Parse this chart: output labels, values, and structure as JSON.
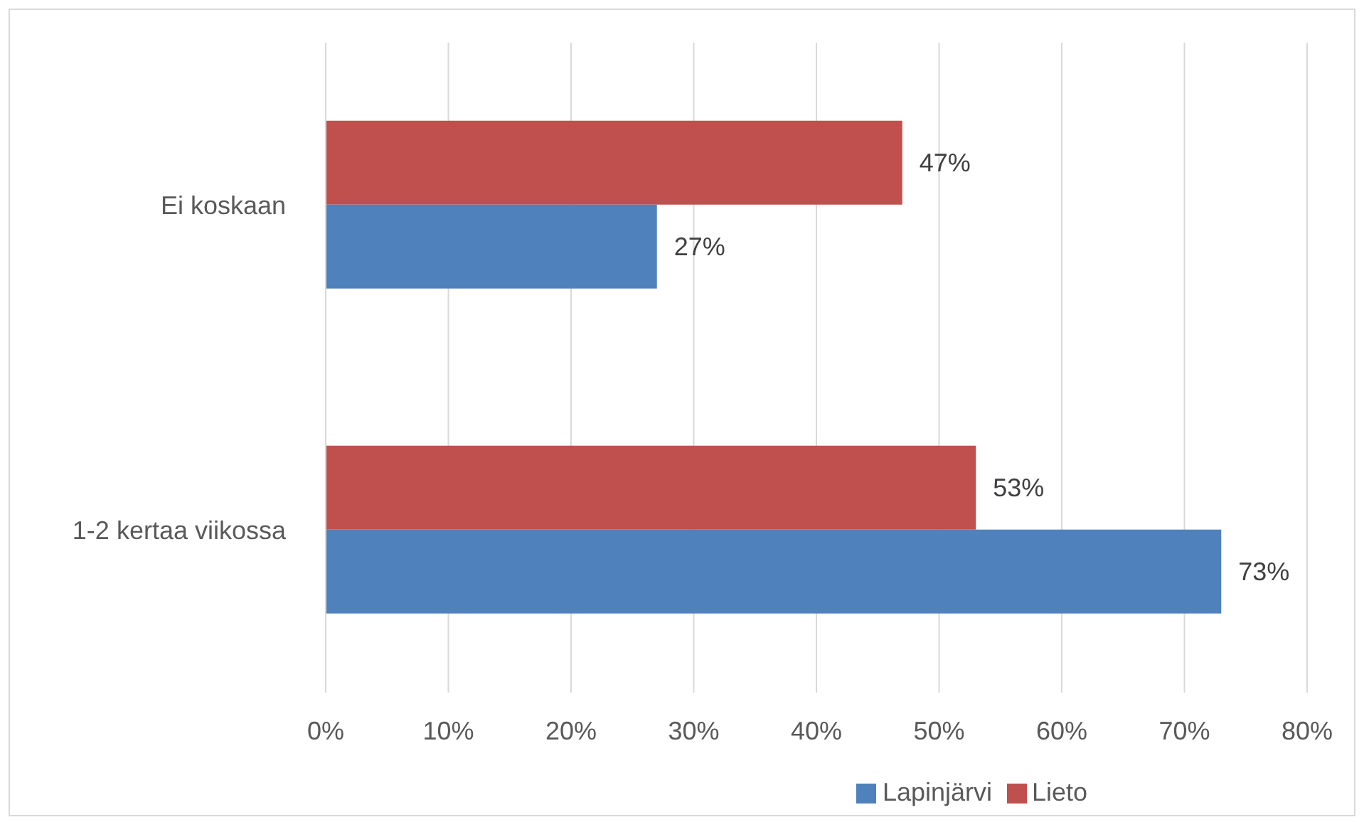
{
  "chart_data": {
    "type": "bar",
    "orientation": "horizontal",
    "categories": [
      "Ei koskaan",
      "1-2 kertaa viikossa"
    ],
    "series": [
      {
        "name": "Lieto",
        "color": "#c0504d",
        "values": [
          47,
          53
        ],
        "value_labels": [
          "47%",
          "53%"
        ]
      },
      {
        "name": "Lapinjärvi",
        "color": "#4f81bd",
        "values": [
          27,
          73
        ],
        "value_labels": [
          "27%",
          "73%"
        ]
      }
    ],
    "xlim": [
      0,
      80
    ],
    "xticks": [
      {
        "value": 0,
        "label": "0%"
      },
      {
        "value": 10,
        "label": "10%"
      },
      {
        "value": 20,
        "label": "20%"
      },
      {
        "value": 30,
        "label": "30%"
      },
      {
        "value": 40,
        "label": "40%"
      },
      {
        "value": 50,
        "label": "50%"
      },
      {
        "value": 60,
        "label": "60%"
      },
      {
        "value": 70,
        "label": "70%"
      },
      {
        "value": 80,
        "label": "80%"
      }
    ],
    "grid": "x",
    "legend": "bottom"
  }
}
